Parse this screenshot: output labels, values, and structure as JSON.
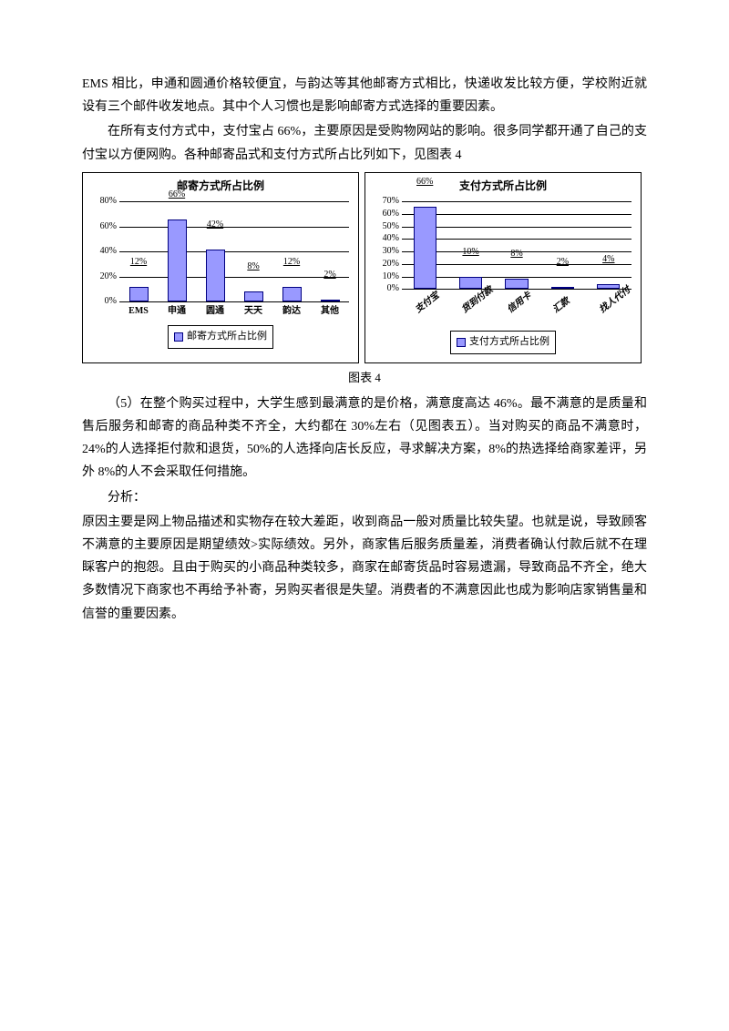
{
  "paragraphs": {
    "p1": "EMS 相比，申通和圆通价格较便宜，与韵达等其他邮寄方式相比，快递收发比较方便，学校附近就设有三个邮件收发地点。其中个人习惯也是影响邮寄方式选择的重要因素。",
    "p2": "在所有支付方式中，支付宝占 66%，主要原因是受购物网站的影响。很多同学都开通了自己的支付宝以方便网购。各种邮寄品式和支付方式所占比列如下，见图表 4",
    "caption": "图表 4",
    "p3": "（5）在整个购买过程中，大学生感到最满意的是价格，满意度高达 46%。最不满意的是质量和售后服务和邮寄的商品种类不齐全，大约都在 30%左右（见图表五）。当对购买的商品不满意时，24%的人选择拒付款和退货，50%的人选择向店长反应，寻求解决方案，8%的热选择给商家差评，另外 8%的人不会采取任何措施。",
    "p4label": "分析：",
    "p4": "原因主要是网上物品描述和实物存在较大差距，收到商品一般对质量比较失望。也就是说，导致顾客不满意的主要原因是期望绩效>实际绩效。另外，商家售后服务质量差，消费者确认付款后就不在理睬客户的抱怨。且由于购买的小商品种类较多，商家在邮寄货品时容易遗漏，导致商品不齐全，绝大多数情况下商家也不再给予补寄，另购买者很是失望。消费者的不满意因此也成为影响店家销售量和信誉的重要因素。"
  },
  "chart1": {
    "title": "邮寄方式所占比例",
    "legend": "邮寄方式所占比例",
    "categories": [
      "EMS",
      "申通",
      "圆通",
      "天天",
      "韵达",
      "其他"
    ],
    "values": [
      12,
      66,
      42,
      8,
      12,
      2
    ],
    "value_labels": [
      "12%",
      "66%",
      "42%",
      "8%",
      "12%",
      "2%"
    ],
    "y_ticks": [
      0,
      20,
      40,
      60,
      80
    ],
    "y_tick_labels": [
      "0%",
      "20%",
      "40%",
      "60%",
      "80%"
    ],
    "y_max": 80,
    "bar_fill": "#9999ff",
    "bar_border": "#000080",
    "plot_bg": "#c0c0c0",
    "inner_bg": "#ffffff"
  },
  "chart2": {
    "title": "支付方式所占比例",
    "legend": "支付方式所占比例",
    "categories": [
      "支付宝",
      "货到付款",
      "信用卡",
      "汇款",
      "找人代付"
    ],
    "values": [
      66,
      10,
      8,
      2,
      4
    ],
    "value_labels": [
      "66%",
      "10%",
      "8%",
      "2%",
      "4%"
    ],
    "y_ticks": [
      0,
      10,
      20,
      30,
      40,
      50,
      60,
      70
    ],
    "y_tick_labels": [
      "0%",
      "10%",
      "20%",
      "30%",
      "40%",
      "50%",
      "60%",
      "70%"
    ],
    "y_max": 70,
    "bar_fill": "#9999ff",
    "bar_border": "#000080",
    "plot_bg": "#c0c0c0",
    "inner_bg": "#ffffff"
  }
}
